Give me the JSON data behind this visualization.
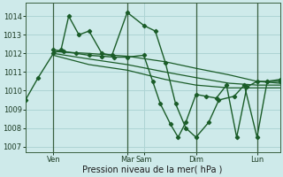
{
  "bg_color": "#ceeaea",
  "grid_color": "#aed4d4",
  "line_color": "#1a5c28",
  "marker_color": "#1a5c28",
  "ylabel_ticks": [
    1007,
    1008,
    1009,
    1010,
    1011,
    1012,
    1013,
    1014
  ],
  "ylim": [
    1006.7,
    1014.7
  ],
  "xlim": [
    0,
    10.0
  ],
  "xlabel": "Pression niveau de la mer( hPa )",
  "xtick_positions": [
    1.1,
    4.0,
    4.65,
    6.7,
    9.1
  ],
  "xtick_labels": [
    "Ven",
    "Mar",
    "Sam",
    "Dim",
    "Lun"
  ],
  "vlines": [
    1.1,
    4.0,
    6.7,
    9.1
  ],
  "series": [
    {
      "x": [
        0.0,
        0.5,
        1.1,
        1.4,
        1.7,
        2.1,
        2.5,
        3.0,
        3.4,
        4.0,
        4.65,
        5.1,
        5.5,
        5.9,
        6.3,
        6.7,
        7.2,
        7.6,
        8.2,
        8.6,
        9.1,
        9.5,
        10.0
      ],
      "y": [
        1009.5,
        1010.7,
        1012.0,
        1012.2,
        1014.0,
        1013.0,
        1013.2,
        1012.0,
        1011.9,
        1014.2,
        1013.5,
        1013.2,
        1011.5,
        1009.3,
        1008.0,
        1007.5,
        1008.3,
        1009.5,
        1009.7,
        1010.3,
        1007.5,
        1010.5,
        1010.6
      ],
      "has_marker": true,
      "lw": 1.0
    },
    {
      "x": [
        1.1,
        2.5,
        4.0,
        5.5,
        6.7,
        8.0,
        9.1,
        10.0
      ],
      "y": [
        1012.1,
        1012.0,
        1011.85,
        1011.55,
        1011.2,
        1010.85,
        1010.5,
        1010.4
      ],
      "has_marker": false,
      "lw": 0.9
    },
    {
      "x": [
        1.1,
        2.5,
        4.0,
        5.5,
        6.7,
        8.0,
        9.1,
        10.0
      ],
      "y": [
        1012.0,
        1011.7,
        1011.4,
        1011.0,
        1010.7,
        1010.4,
        1010.3,
        1010.3
      ],
      "has_marker": false,
      "lw": 0.9
    },
    {
      "x": [
        1.1,
        2.5,
        4.0,
        5.5,
        6.7,
        8.0,
        9.1,
        10.0
      ],
      "y": [
        1011.9,
        1011.4,
        1011.1,
        1010.6,
        1010.3,
        1010.15,
        1010.15,
        1010.15
      ],
      "has_marker": false,
      "lw": 0.9
    },
    {
      "x": [
        1.1,
        1.5,
        2.0,
        2.5,
        3.0,
        3.5,
        4.0,
        4.65,
        5.0,
        5.3,
        5.7,
        6.0,
        6.3,
        6.7,
        7.1,
        7.5,
        7.9,
        8.3,
        8.7,
        9.1,
        9.5,
        10.0
      ],
      "y": [
        1012.2,
        1012.1,
        1012.0,
        1011.9,
        1011.85,
        1011.8,
        1011.8,
        1011.9,
        1010.5,
        1009.3,
        1008.2,
        1007.5,
        1008.3,
        1009.8,
        1009.7,
        1009.6,
        1010.3,
        1007.5,
        1010.2,
        1010.5,
        1010.5,
        1010.5
      ],
      "has_marker": true,
      "lw": 1.0
    }
  ]
}
